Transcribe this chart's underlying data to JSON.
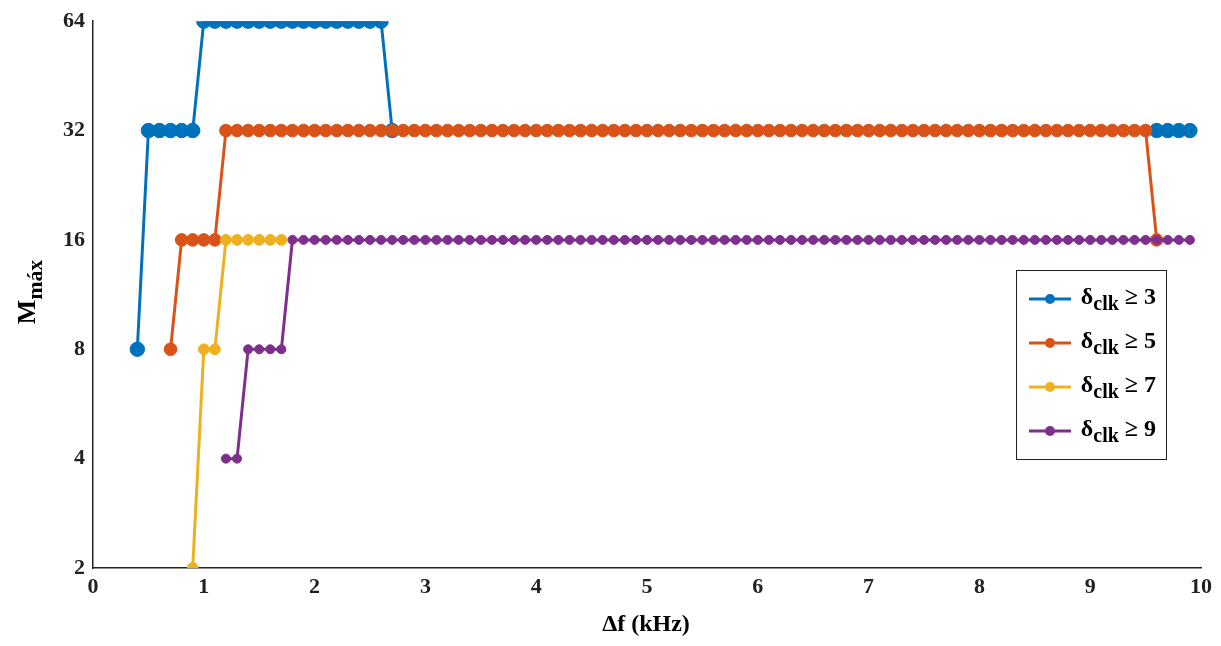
{
  "chart_data": {
    "type": "line",
    "xlabel": "Δf (kHz)",
    "ylabel": "M$_{máx}$",
    "x": [
      0.4,
      0.5,
      0.6,
      0.7,
      0.8,
      0.9,
      1,
      1.1,
      1.2,
      1.3,
      1.4,
      1.5,
      1.6,
      1.7,
      1.8,
      1.9,
      2,
      2.1,
      2.2,
      2.3,
      2.4,
      2.5,
      2.6,
      2.7,
      2.8,
      2.9,
      3,
      3.1,
      3.2,
      3.3,
      3.4,
      3.5,
      3.6,
      3.7,
      3.8,
      3.9,
      4,
      4.1,
      4.2,
      4.3,
      4.4,
      4.5,
      4.6,
      4.7,
      4.8,
      4.9,
      5,
      5.1,
      5.2,
      5.3,
      5.4,
      5.5,
      5.6,
      5.7,
      5.8,
      5.9,
      6,
      6.1,
      6.2,
      6.3,
      6.4,
      6.5,
      6.6,
      6.7,
      6.8,
      6.9,
      7,
      7.1,
      7.2,
      7.3,
      7.4,
      7.5,
      7.6,
      7.7,
      7.8,
      7.9,
      8,
      8.1,
      8.2,
      8.3,
      8.4,
      8.5,
      8.6,
      8.7,
      8.8,
      8.9,
      9,
      9.1,
      9.2,
      9.3,
      9.4,
      9.5,
      9.6,
      9.7,
      9.8,
      9.9
    ],
    "series": [
      {
        "name": "δ$_{clk}$ ≥ 3",
        "color": "#0072bd",
        "values": [
          8,
          32,
          32,
          32,
          32,
          32,
          64,
          64,
          64,
          64,
          64,
          64,
          64,
          64,
          64,
          64,
          64,
          64,
          64,
          64,
          64,
          64,
          64,
          32,
          null,
          null,
          null,
          null,
          null,
          null,
          null,
          null,
          null,
          null,
          null,
          null,
          null,
          null,
          null,
          null,
          null,
          null,
          null,
          null,
          null,
          null,
          null,
          null,
          null,
          null,
          null,
          null,
          null,
          null,
          null,
          null,
          null,
          null,
          null,
          null,
          null,
          null,
          null,
          null,
          null,
          null,
          null,
          null,
          null,
          null,
          null,
          null,
          null,
          null,
          null,
          null,
          null,
          null,
          null,
          null,
          null,
          null,
          null,
          null,
          null,
          null,
          null,
          null,
          null,
          null,
          null,
          null,
          32,
          32,
          32,
          32
        ]
      },
      {
        "name": "δ$_{clk}$ ≥ 5",
        "color": "#d95319",
        "values": [
          null,
          null,
          null,
          8,
          16,
          16,
          16,
          16,
          32,
          32,
          32,
          32,
          32,
          32,
          32,
          32,
          32,
          32,
          32,
          32,
          32,
          32,
          32,
          32,
          32,
          32,
          32,
          32,
          32,
          32,
          32,
          32,
          32,
          32,
          32,
          32,
          32,
          32,
          32,
          32,
          32,
          32,
          32,
          32,
          32,
          32,
          32,
          32,
          32,
          32,
          32,
          32,
          32,
          32,
          32,
          32,
          32,
          32,
          32,
          32,
          32,
          32,
          32,
          32,
          32,
          32,
          32,
          32,
          32,
          32,
          32,
          32,
          32,
          32,
          32,
          32,
          32,
          32,
          32,
          32,
          32,
          32,
          32,
          32,
          32,
          32,
          32,
          32,
          32,
          32,
          32,
          32,
          16,
          null,
          null,
          null
        ]
      },
      {
        "name": "δ$_{clk}$ ≥ 7",
        "color": "#edb120",
        "values": [
          null,
          null,
          null,
          null,
          null,
          2,
          8,
          8,
          16,
          16,
          16,
          16,
          16,
          16,
          null,
          null,
          null,
          null,
          null,
          null,
          null,
          null,
          null,
          null,
          null,
          null,
          null,
          null,
          null,
          null,
          null,
          null,
          null,
          null,
          null,
          null,
          null,
          null,
          null,
          null,
          null,
          null,
          null,
          null,
          null,
          null,
          null,
          null,
          null,
          null,
          null,
          null,
          null,
          null,
          null,
          null,
          null,
          null,
          null,
          null,
          null,
          null,
          null,
          null,
          null,
          null,
          null,
          null,
          null,
          null,
          null,
          null,
          null,
          null,
          null,
          null,
          null,
          null,
          null,
          null,
          null,
          null,
          null,
          null,
          null,
          null,
          null,
          null,
          null,
          null,
          null,
          null,
          null,
          null,
          null,
          null
        ]
      },
      {
        "name": "δ$_{clk}$ ≥ 9",
        "color": "#7e2f8e",
        "values": [
          null,
          null,
          null,
          null,
          null,
          null,
          null,
          null,
          4,
          4,
          8,
          8,
          8,
          8,
          16,
          16,
          16,
          16,
          16,
          16,
          16,
          16,
          16,
          16,
          16,
          16,
          16,
          16,
          16,
          16,
          16,
          16,
          16,
          16,
          16,
          16,
          16,
          16,
          16,
          16,
          16,
          16,
          16,
          16,
          16,
          16,
          16,
          16,
          16,
          16,
          16,
          16,
          16,
          16,
          16,
          16,
          16,
          16,
          16,
          16,
          16,
          16,
          16,
          16,
          16,
          16,
          16,
          16,
          16,
          16,
          16,
          16,
          16,
          16,
          16,
          16,
          16,
          16,
          16,
          16,
          16,
          16,
          16,
          16,
          16,
          16,
          16,
          16,
          16,
          16,
          16,
          16,
          16,
          16,
          16,
          16
        ]
      }
    ],
    "xlim": [
      0,
      10
    ],
    "xticks": [
      0,
      1,
      2,
      3,
      4,
      5,
      6,
      7,
      8,
      9,
      10
    ],
    "ylim": [
      2,
      64
    ],
    "yticks": [
      2,
      4,
      8,
      16,
      32,
      64
    ],
    "log": "y",
    "grid": false,
    "legend": "right",
    "marker": "circle",
    "line_style": "solid"
  }
}
